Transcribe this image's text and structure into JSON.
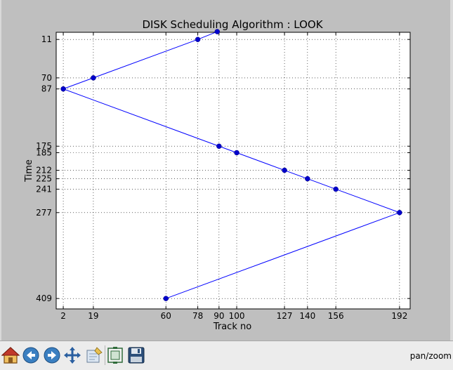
{
  "chart_data": {
    "type": "line",
    "title": "DISK Scheduling Algorithm : LOOK",
    "xlabel": "Track no",
    "ylabel": "Time",
    "xlim": [
      -2,
      198
    ],
    "ylim": [
      0,
      425
    ],
    "y_inverted": true,
    "grid": true,
    "x_ticks": [
      2,
      19,
      60,
      78,
      90,
      100,
      127,
      140,
      156,
      192
    ],
    "y_ticks": [
      11,
      70,
      87,
      175,
      185,
      212,
      225,
      241,
      277,
      409
    ],
    "series": [
      {
        "color": "#0000ff",
        "x": [
          60,
          192,
          156,
          140,
          127,
          100,
          90,
          2,
          19,
          78,
          89
        ],
        "y": [
          409,
          277,
          241,
          225,
          212,
          185,
          175,
          87,
          70,
          11,
          -1
        ]
      }
    ]
  },
  "toolbar": {
    "buttons": [
      {
        "name": "home-button",
        "icon": "home-icon"
      },
      {
        "name": "back-button",
        "icon": "back-arrow-icon"
      },
      {
        "name": "forward-button",
        "icon": "forward-arrow-icon"
      },
      {
        "name": "pan-button",
        "icon": "pan-arrows-icon"
      },
      {
        "name": "zoom-button",
        "icon": "zoom-rect-icon"
      },
      {
        "name": "subplots-button",
        "icon": "subplots-icon"
      },
      {
        "name": "save-button",
        "icon": "save-disk-icon"
      }
    ],
    "status_text": "pan/zoom"
  }
}
